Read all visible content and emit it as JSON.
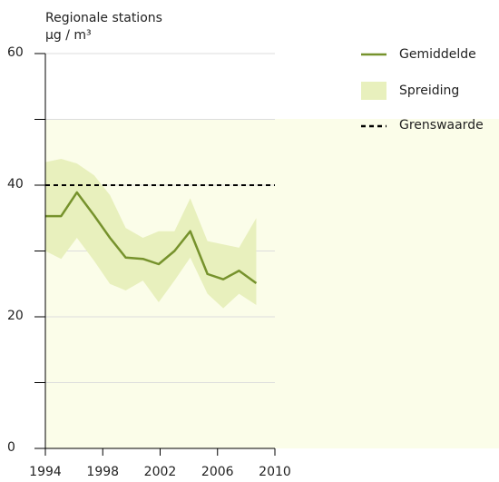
{
  "chart_data": {
    "type": "line",
    "title": "Regionale stations",
    "y_label": "µg / m³",
    "x": [
      1994,
      1995.1,
      1996.2,
      1997.4,
      1998.5,
      1999.6,
      2000.8,
      2001.9,
      2003,
      2004.1,
      2005.3,
      2006.4,
      2007.5,
      2008.7
    ],
    "series": [
      {
        "name": "Gemiddelde",
        "color": "#76922c",
        "values": [
          35.3,
          35.3,
          38.9,
          35.4,
          32,
          29,
          28.8,
          28,
          30,
          33,
          26.5,
          25.7,
          27,
          25.1
        ]
      }
    ],
    "band": {
      "name": "Spreiding",
      "color": "#e8f0bd",
      "upper": [
        43.5,
        44,
        43.3,
        41.5,
        38.5,
        33.5,
        32,
        33,
        33,
        38,
        31.5,
        31,
        30.5,
        35
      ],
      "lower": [
        30,
        28.8,
        32,
        28.5,
        25,
        24,
        25.5,
        22.2,
        25.5,
        29,
        23.5,
        21.3,
        23.5,
        21.8
      ]
    },
    "limit": {
      "name": "Grenswaarde",
      "value": 40,
      "color": "#000000"
    },
    "xlim": [
      1994,
      2010
    ],
    "xticks": [
      1994,
      1998,
      2002,
      2006,
      2010
    ],
    "ylim": [
      0,
      60
    ],
    "yticks": [
      0,
      20,
      40,
      60
    ],
    "yminor_ticks": [
      10,
      30,
      50
    ],
    "grid": true
  }
}
